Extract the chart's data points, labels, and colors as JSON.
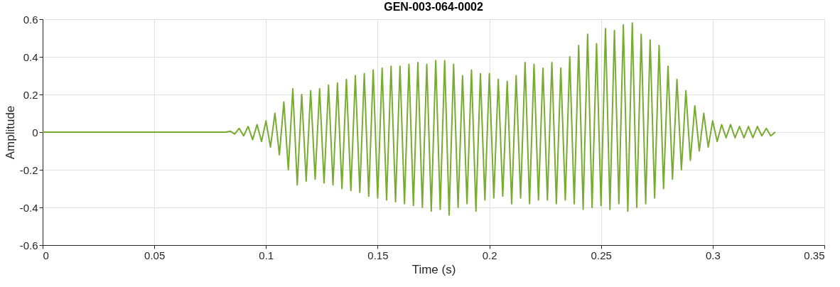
{
  "chart_data": {
    "type": "line",
    "title": "GEN-003-064-0002",
    "xlabel": "Time (s)",
    "ylabel": "Amplitude",
    "xlim": [
      0,
      0.35
    ],
    "xticks": [
      0,
      0.05,
      0.1,
      0.15,
      0.2,
      0.25,
      0.3,
      0.35
    ],
    "ylim": [
      -0.6,
      0.6
    ],
    "yticks": [
      -0.6,
      -0.4,
      -0.2,
      0,
      0.2,
      0.4,
      0.6
    ],
    "grid": true,
    "line_style": "solid",
    "series": [
      {
        "color": "#77ac30",
        "x": [
          0,
          0.04,
          0.082,
          0.084,
          0.086,
          0.088,
          0.09,
          0.092,
          0.094,
          0.096,
          0.098,
          0.1,
          0.102,
          0.104,
          0.106,
          0.108,
          0.11,
          0.112,
          0.114,
          0.116,
          0.118,
          0.12,
          0.122,
          0.124,
          0.126,
          0.128,
          0.13,
          0.132,
          0.134,
          0.136,
          0.138,
          0.14,
          0.142,
          0.144,
          0.146,
          0.148,
          0.15,
          0.152,
          0.154,
          0.156,
          0.158,
          0.16,
          0.162,
          0.164,
          0.166,
          0.168,
          0.17,
          0.172,
          0.174,
          0.176,
          0.178,
          0.18,
          0.182,
          0.184,
          0.186,
          0.188,
          0.19,
          0.192,
          0.194,
          0.196,
          0.198,
          0.2,
          0.202,
          0.204,
          0.206,
          0.208,
          0.21,
          0.212,
          0.214,
          0.216,
          0.218,
          0.22,
          0.222,
          0.224,
          0.226,
          0.228,
          0.23,
          0.232,
          0.234,
          0.236,
          0.238,
          0.24,
          0.242,
          0.244,
          0.246,
          0.248,
          0.25,
          0.252,
          0.254,
          0.256,
          0.258,
          0.26,
          0.262,
          0.264,
          0.266,
          0.268,
          0.27,
          0.272,
          0.274,
          0.276,
          0.278,
          0.28,
          0.282,
          0.284,
          0.286,
          0.288,
          0.29,
          0.292,
          0.294,
          0.296,
          0.298,
          0.3,
          0.302,
          0.304,
          0.306,
          0.308,
          0.31,
          0.312,
          0.314,
          0.316,
          0.318,
          0.32,
          0.322,
          0.324,
          0.326,
          0.328
        ],
        "values": [
          0,
          0,
          0,
          0.005,
          -0.01,
          0.02,
          -0.02,
          0.03,
          -0.04,
          0.04,
          -0.05,
          0.06,
          -0.08,
          0.1,
          -0.12,
          0.16,
          -0.2,
          0.23,
          -0.28,
          0.2,
          -0.26,
          0.22,
          -0.25,
          0.23,
          -0.27,
          0.25,
          -0.28,
          0.26,
          -0.3,
          0.28,
          -0.31,
          0.3,
          -0.32,
          0.31,
          -0.34,
          0.33,
          -0.35,
          0.34,
          -0.36,
          0.35,
          -0.37,
          0.35,
          -0.38,
          0.36,
          -0.39,
          0.37,
          -0.4,
          0.36,
          -0.42,
          0.38,
          -0.41,
          0.38,
          -0.44,
          0.36,
          -0.4,
          0.3,
          -0.38,
          0.33,
          -0.42,
          0.31,
          -0.36,
          0.31,
          -0.35,
          0.28,
          -0.34,
          0.27,
          -0.38,
          0.3,
          -0.35,
          0.37,
          -0.38,
          0.36,
          -0.36,
          0.34,
          -0.36,
          0.37,
          -0.38,
          0.34,
          -0.36,
          0.4,
          -0.38,
          0.46,
          -0.41,
          0.52,
          -0.4,
          0.47,
          -0.39,
          0.55,
          -0.41,
          0.54,
          -0.38,
          0.57,
          -0.42,
          0.58,
          -0.4,
          0.52,
          -0.38,
          0.49,
          -0.35,
          0.46,
          -0.3,
          0.35,
          -0.25,
          0.28,
          -0.2,
          0.22,
          -0.15,
          0.14,
          -0.1,
          0.1,
          -0.08,
          0.06,
          -0.05,
          0.04,
          -0.03,
          0.04,
          -0.03,
          0.03,
          -0.03,
          0.03,
          -0.03,
          0.03,
          -0.02,
          0.02,
          -0.02,
          0
        ]
      }
    ]
  }
}
